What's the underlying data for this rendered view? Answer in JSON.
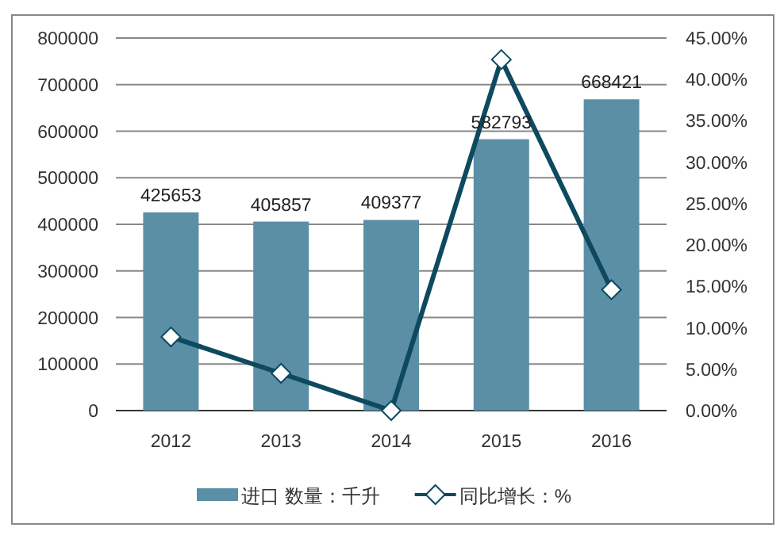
{
  "chart_data": {
    "type": "bar",
    "categories": [
      "2012",
      "2013",
      "2014",
      "2015",
      "2016"
    ],
    "series": [
      {
        "name": "进口 数量：千升",
        "color": "#5b8fa6",
        "values": [
          425653,
          405857,
          409377,
          582793,
          668421
        ],
        "value_labels": [
          "425653",
          "405857",
          "409377",
          "582793",
          "668421"
        ]
      },
      {
        "name": "同比增长：%",
        "type": "line",
        "axis": "y2",
        "color": "#0d4a5f",
        "marker": "diamond",
        "values": [
          8.9,
          4.5,
          0,
          42.4,
          14.6
        ]
      }
    ],
    "ylim": [
      0,
      800000
    ],
    "yticks": [
      0,
      100000,
      200000,
      300000,
      400000,
      500000,
      600000,
      700000,
      800000
    ],
    "y2lim": [
      0,
      45
    ],
    "y2ticks": [
      {
        "value": 0,
        "label": "0.00%"
      },
      {
        "value": 5,
        "label": "5.00%"
      },
      {
        "value": 10,
        "label": "10.00%"
      },
      {
        "value": 15,
        "label": "15.00%"
      },
      {
        "value": 20,
        "label": "20.00%"
      },
      {
        "value": 25,
        "label": "25.00%"
      },
      {
        "value": 30,
        "label": "30.00%"
      },
      {
        "value": 35,
        "label": "35.00%"
      },
      {
        "value": 40,
        "label": "40.00%"
      },
      {
        "value": 45,
        "label": "45.00%"
      }
    ],
    "grid": "y",
    "legend": "bottom"
  }
}
